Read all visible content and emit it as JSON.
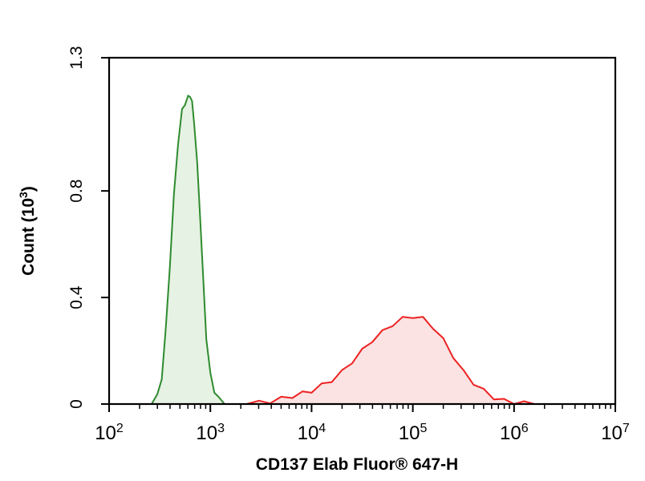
{
  "chart_data": {
    "type": "area",
    "xlabel": "CD137 Elab Fluor® 647-H",
    "ylabel": "Count (10³)",
    "x_scale": "log",
    "xlim": [
      100,
      10000000
    ],
    "ylim": [
      0,
      1.3
    ],
    "x_ticks": [
      {
        "base": "10",
        "exp": "2"
      },
      {
        "base": "10",
        "exp": "3"
      },
      {
        "base": "10",
        "exp": "4"
      },
      {
        "base": "10",
        "exp": "5"
      },
      {
        "base": "10",
        "exp": "6"
      },
      {
        "base": "10",
        "exp": "7"
      }
    ],
    "y_ticks": [
      "0",
      "0.4",
      "0.8",
      "1.3"
    ],
    "y_tick_values": [
      0,
      0.4,
      0.8,
      1.3
    ],
    "grid": false,
    "series": [
      {
        "color": "#2e8b2e",
        "fill": "#e6f2e3",
        "points": [
          [
            263,
            0
          ],
          [
            300,
            0.03
          ],
          [
            331,
            0.1
          ],
          [
            363,
            0.28
          ],
          [
            398,
            0.52
          ],
          [
            437,
            0.78
          ],
          [
            479,
            0.98
          ],
          [
            525,
            1.1
          ],
          [
            562,
            1.13
          ],
          [
            603,
            1.15
          ],
          [
            631,
            1.16
          ],
          [
            660,
            1.13
          ],
          [
            692,
            1.06
          ],
          [
            741,
            0.9
          ],
          [
            794,
            0.7
          ],
          [
            851,
            0.46
          ],
          [
            912,
            0.25
          ],
          [
            1000,
            0.11
          ],
          [
            1096,
            0.05
          ],
          [
            1202,
            0.02
          ],
          [
            1380,
            0.005
          ],
          [
            1585,
            0
          ]
        ]
      },
      {
        "color": "#ee2222",
        "fill": "#fbe3e3",
        "points": [
          [
            2290,
            0
          ],
          [
            3020,
            0.005
          ],
          [
            3890,
            0.01
          ],
          [
            5010,
            0.02
          ],
          [
            6460,
            0.03
          ],
          [
            8130,
            0.04
          ],
          [
            10000,
            0.05
          ],
          [
            12590,
            0.07
          ],
          [
            15850,
            0.09
          ],
          [
            19950,
            0.12
          ],
          [
            25120,
            0.16
          ],
          [
            31620,
            0.2
          ],
          [
            39810,
            0.24
          ],
          [
            50120,
            0.27
          ],
          [
            63100,
            0.3
          ],
          [
            79430,
            0.32
          ],
          [
            100000,
            0.33
          ],
          [
            125900,
            0.32
          ],
          [
            158500,
            0.29
          ],
          [
            199500,
            0.24
          ],
          [
            251200,
            0.18
          ],
          [
            316200,
            0.12
          ],
          [
            398100,
            0.08
          ],
          [
            501200,
            0.05
          ],
          [
            631000,
            0.025
          ],
          [
            794300,
            0.012
          ],
          [
            1000000,
            0.006
          ],
          [
            1259000,
            0.003
          ],
          [
            1585000,
            0.001
          ],
          [
            1995000,
            0
          ]
        ]
      }
    ]
  }
}
